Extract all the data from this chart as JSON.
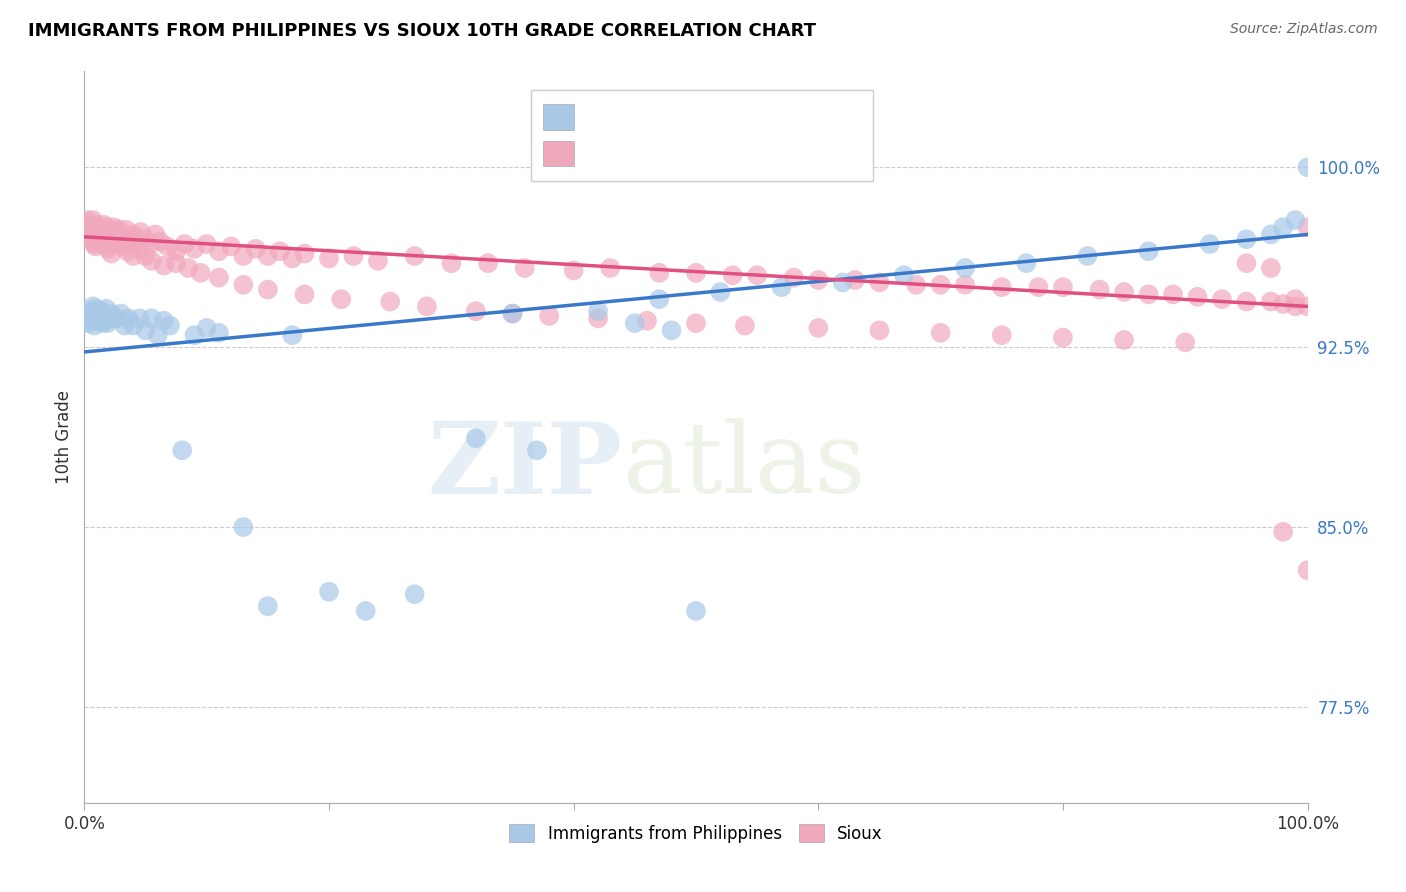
{
  "title": "IMMIGRANTS FROM PHILIPPINES VS SIOUX 10TH GRADE CORRELATION CHART",
  "source": "Source: ZipAtlas.com",
  "ylabel": "10th Grade",
  "yticks": [
    0.775,
    0.85,
    0.925,
    1.0
  ],
  "ytick_labels": [
    "77.5%",
    "85.0%",
    "92.5%",
    "100.0%"
  ],
  "xlim": [
    0.0,
    1.0
  ],
  "ylim": [
    0.735,
    1.04
  ],
  "blue_scatter_x": [
    0.003,
    0.004,
    0.005,
    0.006,
    0.007,
    0.008,
    0.009,
    0.01,
    0.011,
    0.012,
    0.013,
    0.014,
    0.015,
    0.016,
    0.017,
    0.018,
    0.019,
    0.02,
    0.022,
    0.025,
    0.027,
    0.03,
    0.033,
    0.036,
    0.04,
    0.045,
    0.05,
    0.055,
    0.06,
    0.065,
    0.07,
    0.08,
    0.09,
    0.1,
    0.11,
    0.13,
    0.15,
    0.17,
    0.2,
    0.23,
    0.27,
    0.32,
    0.37,
    0.42,
    0.47,
    0.52,
    0.57,
    0.62,
    0.67,
    0.72,
    0.77,
    0.82,
    0.87,
    0.92,
    0.95,
    0.97,
    0.98,
    0.99,
    1.0,
    0.35,
    0.45,
    0.48,
    0.5
  ],
  "blue_scatter_y": [
    0.935,
    0.938,
    0.94,
    0.936,
    0.942,
    0.934,
    0.938,
    0.941,
    0.936,
    0.939,
    0.937,
    0.94,
    0.935,
    0.938,
    0.936,
    0.941,
    0.935,
    0.937,
    0.939,
    0.937,
    0.937,
    0.939,
    0.934,
    0.937,
    0.934,
    0.937,
    0.932,
    0.937,
    0.93,
    0.936,
    0.934,
    0.882,
    0.93,
    0.933,
    0.931,
    0.85,
    0.817,
    0.93,
    0.823,
    0.815,
    0.822,
    0.887,
    0.882,
    0.94,
    0.945,
    0.948,
    0.95,
    0.952,
    0.955,
    0.958,
    0.96,
    0.963,
    0.965,
    0.968,
    0.97,
    0.972,
    0.975,
    0.978,
    1.0,
    0.939,
    0.935,
    0.932,
    0.815
  ],
  "pink_scatter_x": [
    0.002,
    0.003,
    0.004,
    0.005,
    0.006,
    0.007,
    0.008,
    0.009,
    0.01,
    0.011,
    0.012,
    0.013,
    0.014,
    0.015,
    0.016,
    0.017,
    0.018,
    0.019,
    0.02,
    0.021,
    0.022,
    0.023,
    0.024,
    0.025,
    0.026,
    0.027,
    0.028,
    0.03,
    0.032,
    0.034,
    0.036,
    0.038,
    0.04,
    0.043,
    0.046,
    0.05,
    0.054,
    0.058,
    0.062,
    0.068,
    0.075,
    0.082,
    0.09,
    0.1,
    0.11,
    0.12,
    0.13,
    0.14,
    0.15,
    0.16,
    0.17,
    0.18,
    0.2,
    0.22,
    0.24,
    0.27,
    0.3,
    0.33,
    0.36,
    0.4,
    0.43,
    0.47,
    0.5,
    0.53,
    0.55,
    0.58,
    0.6,
    0.63,
    0.65,
    0.68,
    0.7,
    0.72,
    0.75,
    0.78,
    0.8,
    0.83,
    0.85,
    0.87,
    0.89,
    0.91,
    0.93,
    0.95,
    0.97,
    0.98,
    0.99,
    1.0,
    0.005,
    0.007,
    0.009,
    0.011,
    0.013,
    0.015,
    0.017,
    0.019,
    0.022,
    0.026,
    0.03,
    0.035,
    0.04,
    0.045,
    0.05,
    0.055,
    0.065,
    0.075,
    0.085,
    0.095,
    0.11,
    0.13,
    0.15,
    0.18,
    0.21,
    0.25,
    0.28,
    0.32,
    0.35,
    0.38,
    0.42,
    0.46,
    0.5,
    0.54,
    0.6,
    0.65,
    0.7,
    0.75,
    0.8,
    0.85,
    0.9,
    0.95,
    0.97,
    0.98,
    0.99,
    1.0,
    1.0
  ],
  "pink_scatter_y": [
    0.978,
    0.974,
    0.97,
    0.975,
    0.972,
    0.978,
    0.968,
    0.973,
    0.976,
    0.971,
    0.975,
    0.969,
    0.974,
    0.972,
    0.976,
    0.97,
    0.975,
    0.971,
    0.969,
    0.974,
    0.972,
    0.97,
    0.975,
    0.969,
    0.973,
    0.97,
    0.974,
    0.972,
    0.969,
    0.974,
    0.971,
    0.968,
    0.972,
    0.969,
    0.973,
    0.97,
    0.968,
    0.972,
    0.969,
    0.967,
    0.965,
    0.968,
    0.966,
    0.968,
    0.965,
    0.967,
    0.963,
    0.966,
    0.963,
    0.965,
    0.962,
    0.964,
    0.962,
    0.963,
    0.961,
    0.963,
    0.96,
    0.96,
    0.958,
    0.957,
    0.958,
    0.956,
    0.956,
    0.955,
    0.955,
    0.954,
    0.953,
    0.953,
    0.952,
    0.951,
    0.951,
    0.951,
    0.95,
    0.95,
    0.95,
    0.949,
    0.948,
    0.947,
    0.947,
    0.946,
    0.945,
    0.944,
    0.944,
    0.943,
    0.942,
    0.942,
    0.975,
    0.971,
    0.967,
    0.973,
    0.969,
    0.972,
    0.968,
    0.966,
    0.964,
    0.969,
    0.967,
    0.965,
    0.963,
    0.966,
    0.963,
    0.961,
    0.959,
    0.96,
    0.958,
    0.956,
    0.954,
    0.951,
    0.949,
    0.947,
    0.945,
    0.944,
    0.942,
    0.94,
    0.939,
    0.938,
    0.937,
    0.936,
    0.935,
    0.934,
    0.933,
    0.932,
    0.931,
    0.93,
    0.929,
    0.928,
    0.927,
    0.96,
    0.958,
    0.848,
    0.945,
    0.975,
    0.832
  ],
  "blue_line_y_start": 0.923,
  "blue_line_y_end": 0.972,
  "pink_line_y_start": 0.971,
  "pink_line_y_end": 0.942,
  "watermark_zip": "ZIP",
  "watermark_atlas": "atlas",
  "legend_label_blue": "Immigrants from Philippines",
  "legend_label_pink": "Sioux",
  "blue_color": "#a8c8e8",
  "pink_color": "#f0a8bc",
  "blue_line_color": "#3a78c9",
  "pink_line_color": "#e05080",
  "ytick_color": "#3a78c9",
  "background_color": "#ffffff"
}
